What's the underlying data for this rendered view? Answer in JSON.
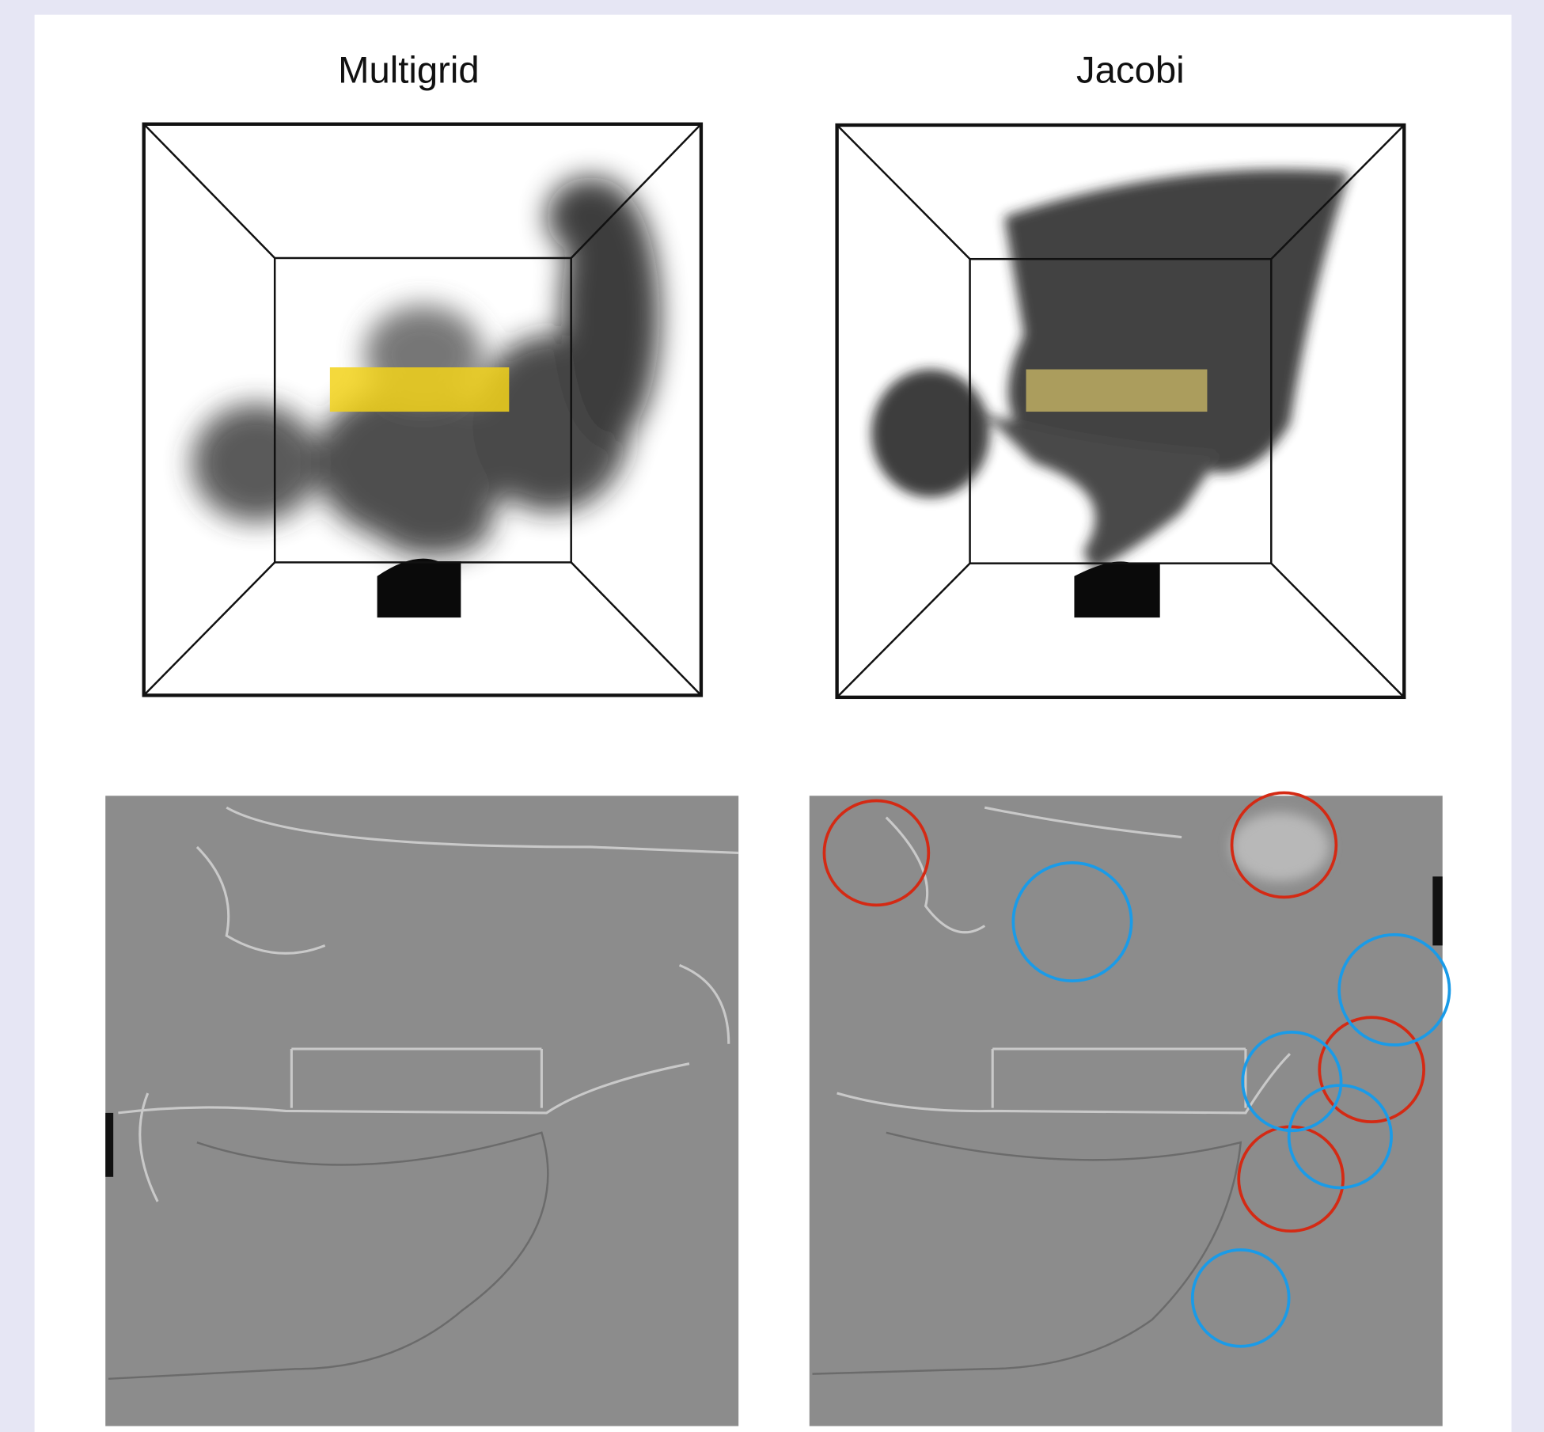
{
  "panels": [
    {
      "title": "Multigrid"
    },
    {
      "title": "Jacobi"
    }
  ]
}
